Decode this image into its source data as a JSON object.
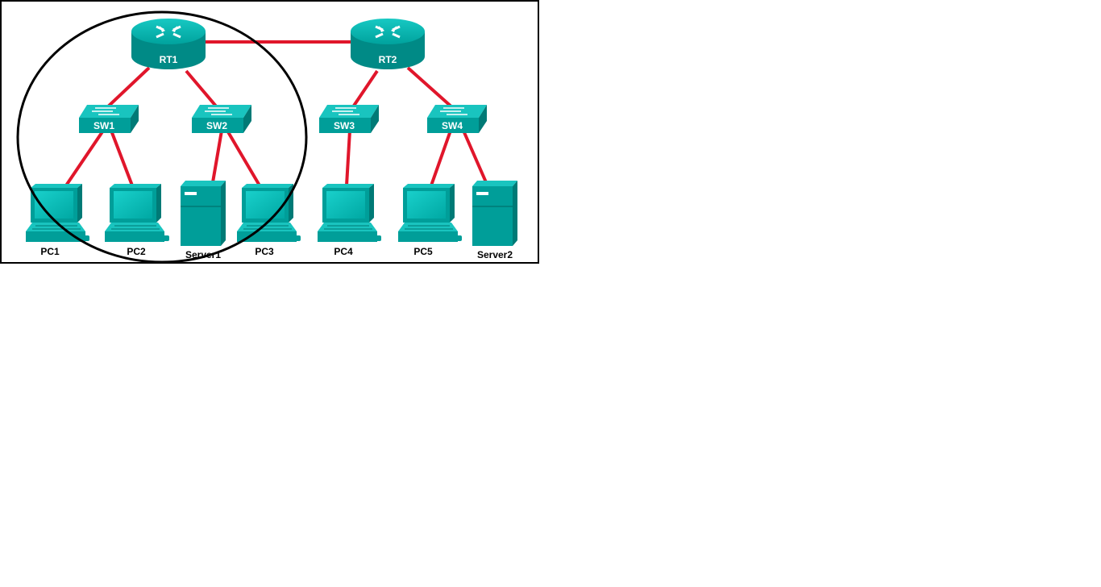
{
  "diagram": {
    "colors": {
      "link": "#e0162b",
      "device_face": "#00b5b0",
      "device_side": "#008a86",
      "device_dark": "#00706d",
      "label_on_device": "#ffffff",
      "label_below": "#000000",
      "highlight_circle": "#000000"
    },
    "nodes": {
      "rt1": {
        "label": "RT1",
        "kind": "router",
        "icon": "router-icon"
      },
      "rt2": {
        "label": "RT2",
        "kind": "router",
        "icon": "router-icon"
      },
      "sw1": {
        "label": "SW1",
        "kind": "switch",
        "icon": "switch-icon"
      },
      "sw2": {
        "label": "SW2",
        "kind": "switch",
        "icon": "switch-icon"
      },
      "sw3": {
        "label": "SW3",
        "kind": "switch",
        "icon": "switch-icon"
      },
      "sw4": {
        "label": "SW4",
        "kind": "switch",
        "icon": "switch-icon"
      },
      "pc1": {
        "label": "PC1",
        "kind": "pc",
        "icon": "pc-icon"
      },
      "pc2": {
        "label": "PC2",
        "kind": "pc",
        "icon": "pc-icon"
      },
      "server1": {
        "label": "Server1",
        "kind": "server",
        "icon": "server-icon"
      },
      "pc3": {
        "label": "PC3",
        "kind": "pc",
        "icon": "pc-icon"
      },
      "pc4": {
        "label": "PC4",
        "kind": "pc",
        "icon": "pc-icon"
      },
      "pc5": {
        "label": "PC5",
        "kind": "pc",
        "icon": "pc-icon"
      },
      "server2": {
        "label": "Server2",
        "kind": "server",
        "icon": "server-icon"
      }
    },
    "links": [
      [
        "rt1",
        "rt2"
      ],
      [
        "rt1",
        "sw1"
      ],
      [
        "rt1",
        "sw2"
      ],
      [
        "rt2",
        "sw3"
      ],
      [
        "rt2",
        "sw4"
      ],
      [
        "sw1",
        "pc1"
      ],
      [
        "sw1",
        "pc2"
      ],
      [
        "sw2",
        "server1"
      ],
      [
        "sw2",
        "pc3"
      ],
      [
        "sw3",
        "pc4"
      ],
      [
        "sw4",
        "pc5"
      ],
      [
        "sw4",
        "server2"
      ]
    ],
    "highlight": {
      "encloses": [
        "rt1",
        "sw1",
        "sw2",
        "pc1",
        "pc2",
        "server1",
        "pc3"
      ]
    }
  }
}
